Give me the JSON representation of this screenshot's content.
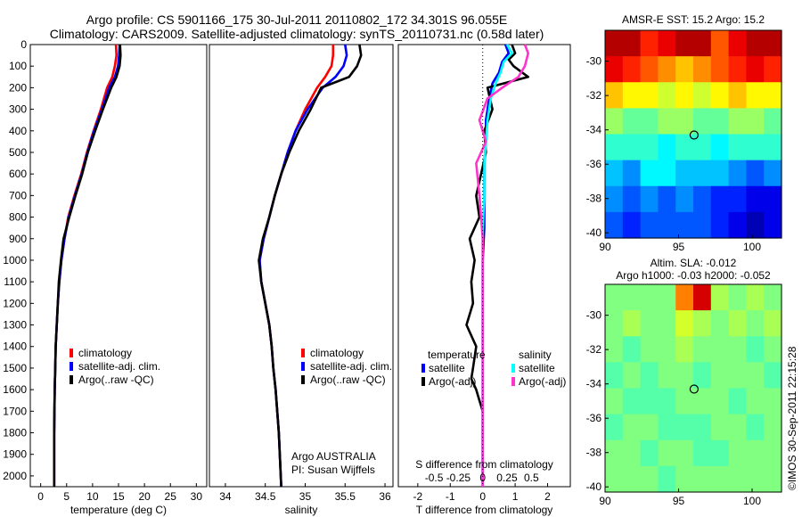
{
  "header": {
    "line1": "Argo profile: CS 5901166_175 30-Jul-2011 20110802_172 34.301S 96.055E",
    "line2": "Climatology: CARS2009. Satellite-adjusted climatology: synTS_20110731.nc (0.58d later)"
  },
  "credit": "©IMOS 30-Sep-2011 22:15:28",
  "colors": {
    "red": "#ff0000",
    "blue": "#0000ff",
    "black": "#000000",
    "cyan": "#00ffff",
    "magenta": "#ff33cc"
  },
  "chart_data": [
    {
      "id": "temperature",
      "type": "line",
      "xlabel": "temperature (deg C)",
      "ylabel": "",
      "xlim": [
        -2,
        32
      ],
      "ylim": [
        0,
        2050
      ],
      "xticks": [
        0,
        5,
        10,
        15,
        20,
        25,
        30
      ],
      "yticks": [
        0,
        100,
        200,
        300,
        400,
        500,
        600,
        700,
        800,
        900,
        1000,
        1100,
        1200,
        1300,
        1400,
        1500,
        1600,
        1700,
        1800,
        1900,
        2000
      ],
      "legend_position": "bottom-right",
      "series": [
        {
          "name": "climatology",
          "color": "#ff0000",
          "x": [
            14.5,
            14.6,
            14.3,
            13.8,
            12.8,
            11.6,
            10.2,
            8.9,
            7.8,
            6.5,
            5.3,
            4.6,
            4.0,
            3.6,
            3.3,
            3.1,
            2.9,
            2.8,
            2.7,
            2.6,
            2.6
          ],
          "y": [
            0,
            50,
            100,
            150,
            200,
            300,
            400,
            500,
            600,
            700,
            800,
            900,
            1000,
            1100,
            1200,
            1300,
            1400,
            1500,
            1600,
            1800,
            2050
          ]
        },
        {
          "name": "satellite-adj. clim.",
          "color": "#0000ff",
          "x": [
            15.2,
            15.1,
            14.9,
            14.3,
            13.2,
            11.8,
            10.3,
            9.0,
            7.9,
            6.6,
            5.4,
            4.6,
            4.0,
            3.6,
            3.3,
            3.1,
            2.9,
            2.8,
            2.7,
            2.6,
            2.6
          ],
          "y": [
            0,
            50,
            100,
            150,
            200,
            300,
            400,
            500,
            600,
            700,
            800,
            900,
            1000,
            1100,
            1200,
            1300,
            1400,
            1500,
            1600,
            1800,
            2050
          ]
        },
        {
          "name": "Argo(..raw -QC)",
          "color": "#000000",
          "x": [
            15.3,
            15.4,
            15.2,
            14.6,
            13.6,
            12.0,
            10.5,
            9.1,
            8.0,
            6.7,
            5.5,
            4.4,
            3.9,
            3.5,
            3.3,
            3.1,
            2.9,
            2.8,
            2.7,
            2.6,
            2.6
          ],
          "y": [
            0,
            50,
            100,
            150,
            200,
            300,
            400,
            500,
            600,
            700,
            800,
            900,
            1000,
            1100,
            1200,
            1300,
            1400,
            1500,
            1600,
            1800,
            2050
          ]
        }
      ]
    },
    {
      "id": "salinity",
      "type": "line",
      "xlabel": "salinity",
      "ylabel": "",
      "xlim": [
        33.8,
        36.1
      ],
      "ylim": [
        0,
        2050
      ],
      "xticks": [
        34,
        34.5,
        35,
        35.5,
        36
      ],
      "legend_position": "bottom-right",
      "annotation": [
        "Argo AUSTRALIA",
        "PI: Susan Wijffels"
      ],
      "series": [
        {
          "name": "climatology",
          "color": "#ff0000",
          "x": [
            35.35,
            35.35,
            35.33,
            35.25,
            35.15,
            35.0,
            34.88,
            34.78,
            34.7,
            34.62,
            34.55,
            34.48,
            34.43,
            34.45,
            34.5,
            34.55,
            34.58,
            34.6,
            34.63,
            34.67,
            34.7
          ],
          "y": [
            0,
            50,
            100,
            150,
            200,
            300,
            400,
            500,
            600,
            700,
            800,
            900,
            1000,
            1100,
            1200,
            1300,
            1400,
            1500,
            1600,
            1800,
            2050
          ]
        },
        {
          "name": "satellite-adj. clim.",
          "color": "#0000ff",
          "x": [
            35.5,
            35.52,
            35.48,
            35.38,
            35.22,
            35.03,
            34.88,
            34.78,
            34.7,
            34.62,
            34.55,
            34.48,
            34.43,
            34.45,
            34.5,
            34.55,
            34.58,
            34.6,
            34.63,
            34.67,
            34.7
          ],
          "y": [
            0,
            50,
            100,
            150,
            200,
            300,
            400,
            500,
            600,
            700,
            800,
            900,
            1000,
            1100,
            1200,
            1300,
            1400,
            1500,
            1600,
            1800,
            2050
          ]
        },
        {
          "name": "Argo(..raw -QC)",
          "color": "#000000",
          "x": [
            35.68,
            35.7,
            35.65,
            35.55,
            35.2,
            35.07,
            34.92,
            34.8,
            34.7,
            34.62,
            34.55,
            34.47,
            34.42,
            34.45,
            34.5,
            34.55,
            34.58,
            34.6,
            34.63,
            34.67,
            34.7
          ],
          "y": [
            0,
            50,
            100,
            150,
            200,
            300,
            400,
            500,
            600,
            700,
            800,
            900,
            1000,
            1100,
            1200,
            1300,
            1400,
            1500,
            1600,
            1800,
            2050
          ]
        }
      ]
    },
    {
      "id": "difference",
      "type": "line",
      "xlabel": "T difference from climatology",
      "x2label": "S difference from climatology",
      "xlim": [
        -2.6,
        2.7
      ],
      "ylim": [
        0,
        2050
      ],
      "xticks": [
        -2,
        -1,
        0,
        1,
        2
      ],
      "xticklabels": [
        "-2",
        "-1",
        "0",
        "1",
        "2"
      ],
      "x2ticks": [
        -1.5,
        -0.75,
        0,
        0.75,
        1.5
      ],
      "x2ticklabels": [
        "-0.5",
        "-0.25",
        "0",
        "0.25",
        "0.5"
      ],
      "legend": {
        "temperature_heading": "temperature",
        "salinity_heading": "salinity",
        "temperature_entries": [
          {
            "label": "satellite",
            "color": "#0000ff"
          },
          {
            "label": "Argo(-adj)",
            "color": "#000000"
          }
        ],
        "salinity_entries": [
          {
            "label": "satellite",
            "color": "#00ffff"
          },
          {
            "label": "Argo(-adj)",
            "color": "#ff33cc"
          }
        ]
      },
      "series": [
        {
          "name": "temperature satellite",
          "color": "#0000ff",
          "x": [
            0.7,
            0.8,
            0.6,
            0.5,
            0.3,
            0.2,
            0.1,
            0.1,
            0.05,
            0.05,
            0.05,
            0,
            0,
            0,
            0,
            0,
            0,
            0,
            0
          ],
          "y": [
            0,
            40,
            80,
            130,
            180,
            250,
            350,
            450,
            550,
            700,
            850,
            1000,
            1200,
            1400,
            1600,
            1700,
            1800,
            1900,
            2050
          ]
        },
        {
          "name": "temperature Argo(-adj)",
          "color": "#000000",
          "x": [
            0.9,
            1.0,
            0.8,
            0.95,
            1.4,
            0.15,
            0.3,
            0.05,
            0.1,
            -0.05,
            -0.2,
            -0.1,
            -0.4,
            -0.25,
            -0.35,
            -0.3,
            -0.5,
            -0.2,
            -0.3,
            -0.35,
            -0.2,
            -0.1,
            0,
            0,
            0
          ],
          "y": [
            0,
            40,
            70,
            100,
            150,
            200,
            300,
            400,
            500,
            600,
            700,
            800,
            900,
            1000,
            1100,
            1200,
            1300,
            1400,
            1500,
            1550,
            1600,
            1650,
            1700,
            1900,
            2050
          ]
        },
        {
          "name": "salinity satellite",
          "color": "#00ffff",
          "x": [
            0.75,
            0.9,
            0.65,
            0.55,
            0.4,
            0.25,
            0.15,
            0.1,
            0.05,
            0.05,
            0,
            0,
            0,
            0,
            0,
            0
          ],
          "y": [
            0,
            40,
            80,
            130,
            180,
            250,
            350,
            450,
            550,
            700,
            850,
            1000,
            1200,
            1500,
            1800,
            2050
          ]
        },
        {
          "name": "salinity Argo(-adj)",
          "color": "#ff33cc",
          "x": [
            1.3,
            1.4,
            1.3,
            1.1,
            0.6,
            0.15,
            -0.1,
            0.1,
            -0.2,
            -0.1,
            0,
            0,
            0,
            0
          ],
          "y": [
            0,
            40,
            100,
            150,
            200,
            250,
            350,
            450,
            550,
            700,
            900,
            1200,
            1600,
            2050
          ]
        }
      ]
    },
    {
      "id": "sst-map",
      "type": "heatmap",
      "title": "AMSR-E SST: 15.2 Argo: 15.2",
      "xlim": [
        90,
        102
      ],
      "ylim": [
        -40.3,
        -28.2
      ],
      "xticks": [
        90,
        95,
        100
      ],
      "yticks": [
        -30,
        -32,
        -34,
        -36,
        -38,
        -40
      ],
      "marker": {
        "lon": 96.055,
        "lat": -34.301
      },
      "grid": {
        "rows": 8,
        "cols": 10,
        "values": [
          [
            22,
            22,
            20,
            21,
            22,
            22,
            19,
            21,
            22,
            22
          ],
          [
            21,
            20,
            19,
            18,
            17,
            18,
            19,
            20,
            21,
            20
          ],
          [
            17,
            16,
            16,
            15,
            16,
            15,
            16,
            17,
            16,
            16
          ],
          [
            14,
            13,
            13,
            14,
            14,
            13,
            13,
            14,
            14,
            13
          ],
          [
            12,
            12,
            12,
            11,
            12,
            12,
            11,
            12,
            12,
            12
          ],
          [
            10,
            9,
            11,
            11,
            10,
            10,
            10,
            9,
            8,
            9
          ],
          [
            9,
            8,
            9,
            8,
            9,
            8,
            7,
            7,
            6,
            6
          ],
          [
            8,
            7,
            8,
            8,
            8,
            8,
            7,
            6,
            5,
            6
          ]
        ]
      }
    },
    {
      "id": "sla-map",
      "type": "heatmap",
      "title": "Altim. SLA: -0.012",
      "subtitle": "Argo h1000: -0.03 h2000: -0.052",
      "xlim": [
        90,
        102
      ],
      "ylim": [
        -40.3,
        -28.2
      ],
      "xticks": [
        90,
        95,
        100
      ],
      "yticks": [
        -30,
        -32,
        -34,
        -36,
        -38,
        -40
      ],
      "marker": {
        "lon": 96.055,
        "lat": -34.301
      },
      "grid": {
        "rows": 8,
        "cols": 10,
        "values": [
          [
            12,
            12,
            12,
            12,
            18,
            22,
            13,
            12,
            13,
            12
          ],
          [
            12,
            13,
            12,
            12,
            14,
            13,
            12,
            13,
            12,
            13
          ],
          [
            12,
            11,
            12,
            12,
            13,
            12,
            12,
            12,
            11,
            12
          ],
          [
            11,
            12,
            11,
            12,
            12,
            11,
            12,
            12,
            12,
            11
          ],
          [
            12,
            11,
            11,
            11,
            12,
            12,
            12,
            11,
            12,
            12
          ],
          [
            11,
            12,
            12,
            11,
            11,
            11,
            12,
            12,
            11,
            12
          ],
          [
            12,
            12,
            11,
            12,
            12,
            11,
            11,
            12,
            12,
            12
          ],
          [
            12,
            12,
            12,
            11,
            12,
            12,
            12,
            12,
            12,
            12
          ]
        ]
      }
    }
  ]
}
